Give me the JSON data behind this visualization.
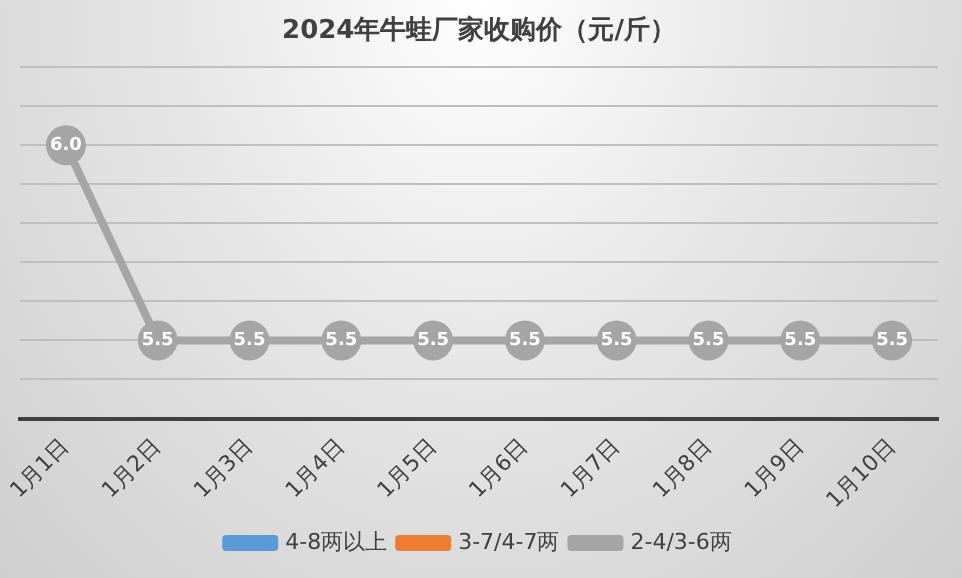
{
  "chart_data": {
    "type": "line",
    "title": "2024年牛蛙厂家收购价（元/斤）",
    "categories": [
      "1月1日",
      "1月2日",
      "1月3日",
      "1月4日",
      "1月5日",
      "1月6日",
      "1月7日",
      "1月8日",
      "1月9日",
      "1月10日"
    ],
    "series": [
      {
        "name": "4-8两以上",
        "color": "#5b9bd5",
        "values": [
          null,
          null,
          null,
          null,
          null,
          null,
          null,
          null,
          null,
          null
        ]
      },
      {
        "name": "3-7/4-7两",
        "color": "#ed7d31",
        "values": [
          null,
          null,
          null,
          null,
          null,
          null,
          null,
          null,
          null,
          null
        ]
      },
      {
        "name": "2-4/3-6两",
        "color": "#a5a5a5",
        "values": [
          6.0,
          5.5,
          5.5,
          5.5,
          5.5,
          5.5,
          5.5,
          5.5,
          5.5,
          5.5
        ],
        "value_labels": [
          "6.0",
          "5.5",
          "5.5",
          "5.5",
          "5.5",
          "5.5",
          "5.5",
          "5.5",
          "5.5",
          "5.5"
        ]
      }
    ],
    "tick_labels": "x",
    "grid": "y",
    "legend": "bottom",
    "marker": "circle",
    "line_style": "solid"
  }
}
